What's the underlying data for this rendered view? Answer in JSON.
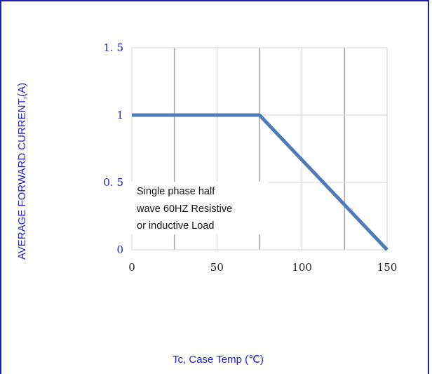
{
  "chart_data": {
    "type": "line",
    "title": "",
    "xlabel": "Tc, Case Temp (℃)",
    "ylabel": "AVERAGE FORWARD CURRENT,(A)",
    "xlim": [
      0,
      150
    ],
    "ylim": [
      0,
      1.5
    ],
    "x_ticks": [
      "0",
      "50",
      "100",
      "150"
    ],
    "y_ticks": [
      "0",
      "0. 5",
      "1",
      "1. 5"
    ],
    "x_tick_values": [
      0,
      50,
      100,
      150
    ],
    "y_tick_values": [
      0,
      0.5,
      1,
      1.5
    ],
    "x_grid_values": [
      0,
      25,
      50,
      75,
      100,
      125,
      150
    ],
    "y_grid_values": [
      0.5,
      1,
      1.5
    ],
    "grid": true,
    "series": [
      {
        "points": [
          [
            0,
            1
          ],
          [
            75,
            1
          ],
          [
            150,
            0
          ]
        ],
        "color": "#4f7bb8"
      }
    ],
    "annotation": [
      "Single phase half",
      "wave 60HZ Resistive",
      "or inductive Load"
    ]
  }
}
